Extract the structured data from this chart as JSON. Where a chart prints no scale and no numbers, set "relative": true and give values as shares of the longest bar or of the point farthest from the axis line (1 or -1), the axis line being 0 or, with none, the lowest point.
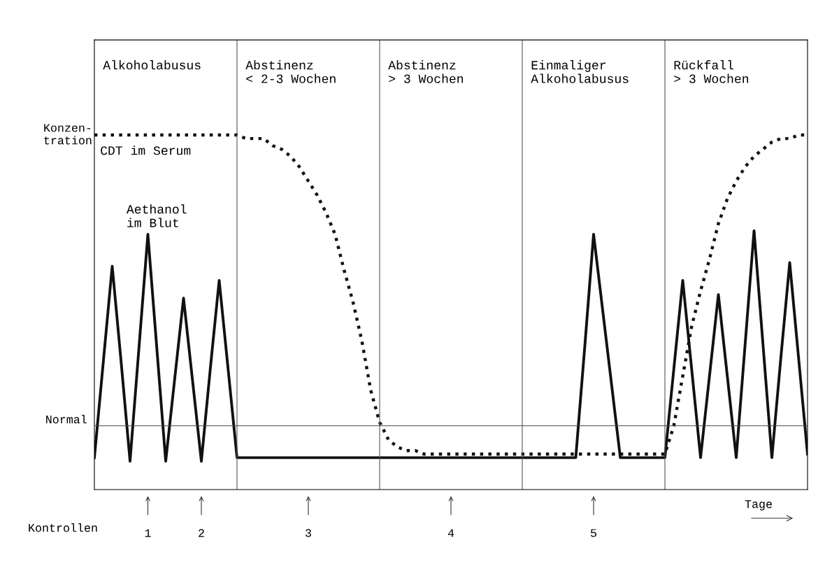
{
  "chart_data": {
    "type": "line",
    "relative": true,
    "ylabel": "Konzen-\ntration",
    "xlabel": "Tage",
    "legend": false,
    "marker": "none",
    "categories": [
      null,
      null,
      null,
      null,
      null,
      null,
      "1",
      null,
      null,
      null,
      null,
      null,
      "2",
      null,
      null,
      null,
      null,
      null,
      null,
      null,
      null,
      null,
      null,
      null,
      "3",
      null,
      null,
      null,
      null,
      null,
      null,
      null,
      null,
      null,
      null,
      null,
      null,
      null,
      null,
      null,
      "4",
      null,
      null,
      null,
      null,
      null,
      null,
      null,
      null,
      null,
      null,
      null,
      null,
      null,
      null,
      null,
      "5",
      null,
      null,
      null,
      null,
      null,
      null,
      null,
      null,
      null,
      null,
      null,
      null,
      null,
      null,
      null,
      null,
      null,
      null,
      null,
      null,
      null,
      null,
      null,
      null
    ],
    "series": [
      {
        "name": "Aethanol\nim Blut",
        "color": "#111111",
        "line_style": "solid",
        "values": [
          0.09,
          0.36,
          0.63,
          0.36,
          0.08,
          0.4,
          0.72,
          0.4,
          0.08,
          0.31,
          0.54,
          0.31,
          0.08,
          0.34,
          0.59,
          0.34,
          0.09,
          0.09,
          0.09,
          0.09,
          0.09,
          0.09,
          0.09,
          0.09,
          0.09,
          0.09,
          0.09,
          0.09,
          0.09,
          0.09,
          0.09,
          0.09,
          0.09,
          0.09,
          0.09,
          0.09,
          0.09,
          0.09,
          0.09,
          0.09,
          0.09,
          0.09,
          0.09,
          0.09,
          0.09,
          0.09,
          0.09,
          0.09,
          0.09,
          0.09,
          0.09,
          0.09,
          0.09,
          0.09,
          0.09,
          0.4,
          0.72,
          0.51,
          0.3,
          0.09,
          0.09,
          0.09,
          0.09,
          0.09,
          0.09,
          0.34,
          0.59,
          0.34,
          0.09,
          0.32,
          0.55,
          0.32,
          0.09,
          0.41,
          0.73,
          0.41,
          0.09,
          0.37,
          0.64,
          0.37,
          0.1
        ]
      },
      {
        "name": "CDT im Serum",
        "color": "#111111",
        "line_style": "dotted",
        "values": [
          1,
          1,
          1,
          1,
          1,
          1,
          1,
          1,
          1,
          1,
          1,
          1,
          1,
          1,
          1,
          1,
          1,
          0.99,
          0.99,
          0.99,
          0.97,
          0.96,
          0.94,
          0.91,
          0.87,
          0.83,
          0.78,
          0.72,
          0.62,
          0.53,
          0.42,
          0.28,
          0.19,
          0.14,
          0.12,
          0.11,
          0.11,
          0.1,
          0.1,
          0.1,
          0.1,
          0.1,
          0.1,
          0.1,
          0.1,
          0.1,
          0.1,
          0.1,
          0.1,
          0.1,
          0.1,
          0.1,
          0.1,
          0.1,
          0.1,
          0.1,
          0.1,
          0.1,
          0.1,
          0.1,
          0.1,
          0.1,
          0.1,
          0.1,
          0.1,
          0.18,
          0.32,
          0.46,
          0.56,
          0.65,
          0.75,
          0.82,
          0.87,
          0.91,
          0.94,
          0.96,
          0.98,
          0.99,
          0.99,
          1,
          1
        ]
      }
    ],
    "annotations": [
      "Alkoholabusus",
      "Abstinenz\n< 2-3 Wochen",
      "Abstinenz\n> 3 Wochen",
      "Einmaliger\nAlkoholabusus",
      "Rückfall\n> 3 Wochen",
      "Kontrollen"
    ],
    "ref_lines": [
      {
        "axis": "y",
        "value": 0.18,
        "label": "Normal",
        "color": "#444444",
        "line_style": "solid"
      }
    ]
  }
}
